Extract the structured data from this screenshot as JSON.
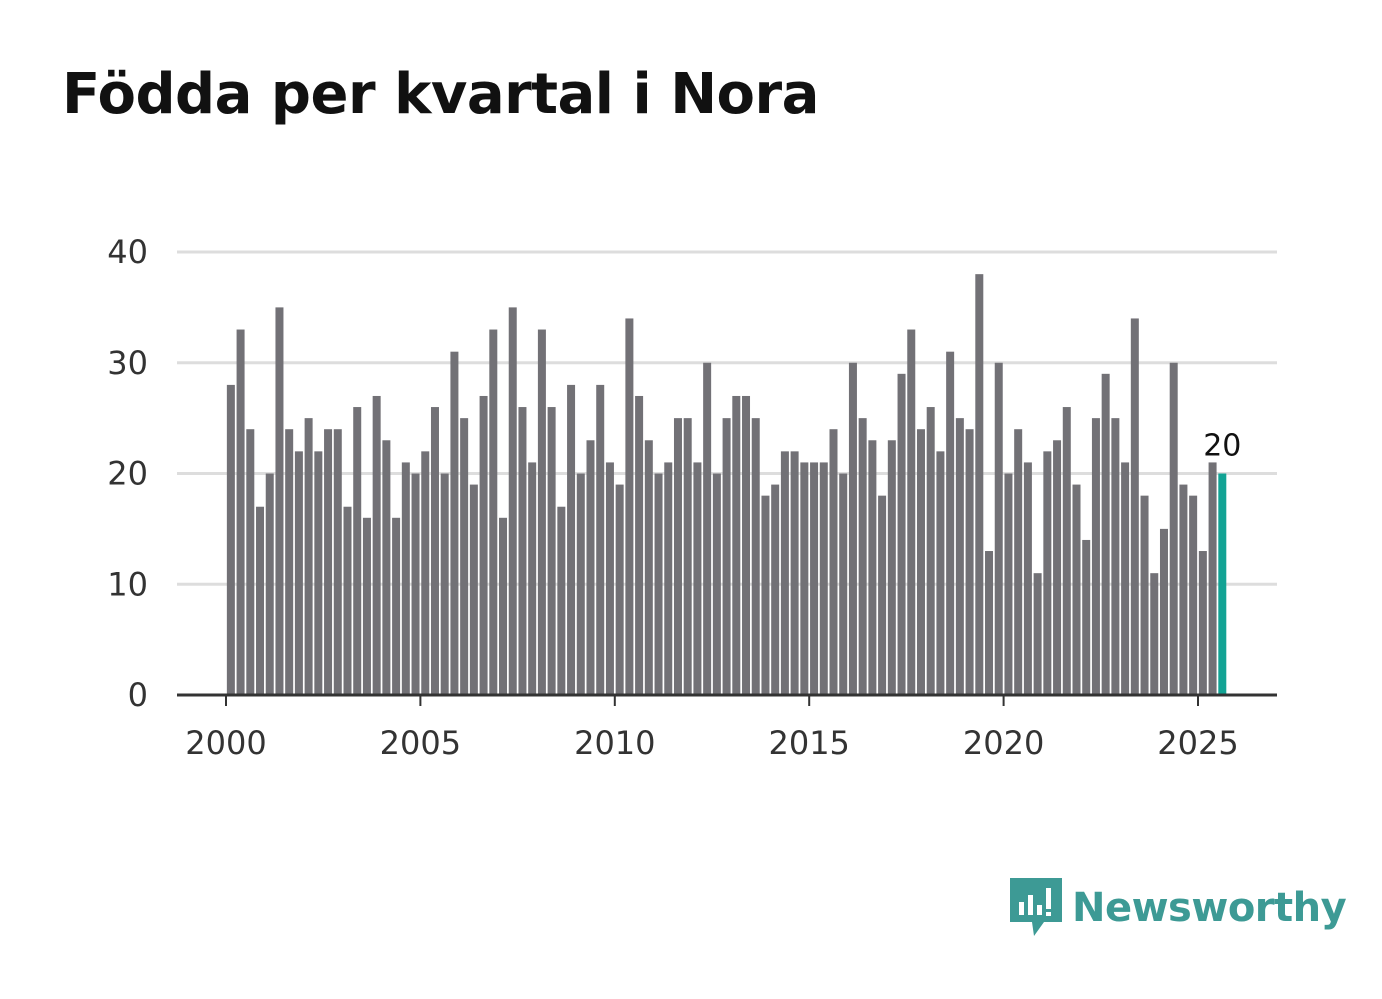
{
  "title": "Födda per kvartal i Nora",
  "brand": {
    "name": "Newsworthy",
    "color": "#3d9a95",
    "icon": "bar-chart-speech-icon"
  },
  "colors": {
    "bar": "#727176",
    "highlight": "#12a394",
    "grid": "#dddddd",
    "axis": "#333333"
  },
  "chart_data": {
    "type": "bar",
    "title": "Födda per kvartal i Nora",
    "xlabel": "",
    "ylabel": "",
    "ylim": [
      0,
      40
    ],
    "yticks": [
      0,
      10,
      20,
      30,
      40
    ],
    "xticks": [
      "2000",
      "2005",
      "2010",
      "2015",
      "2020",
      "2025"
    ],
    "start_year": 2000,
    "start_quarter": 1,
    "values": [
      28,
      33,
      24,
      17,
      20,
      35,
      24,
      22,
      25,
      22,
      24,
      24,
      17,
      26,
      16,
      27,
      23,
      16,
      21,
      20,
      22,
      26,
      20,
      31,
      25,
      19,
      27,
      33,
      16,
      35,
      26,
      21,
      33,
      26,
      17,
      28,
      20,
      23,
      28,
      21,
      19,
      34,
      27,
      23,
      20,
      21,
      25,
      25,
      21,
      30,
      20,
      25,
      27,
      27,
      25,
      18,
      19,
      22,
      22,
      21,
      21,
      21,
      24,
      20,
      30,
      25,
      23,
      18,
      23,
      29,
      33,
      24,
      26,
      22,
      31,
      25,
      24,
      38,
      13,
      30,
      20,
      24,
      21,
      11,
      22,
      23,
      26,
      19,
      14,
      25,
      29,
      25,
      21,
      34,
      18,
      11,
      15,
      30,
      19,
      18,
      13,
      21,
      20
    ],
    "highlight_last": true,
    "annotation": "20",
    "grid": true
  }
}
